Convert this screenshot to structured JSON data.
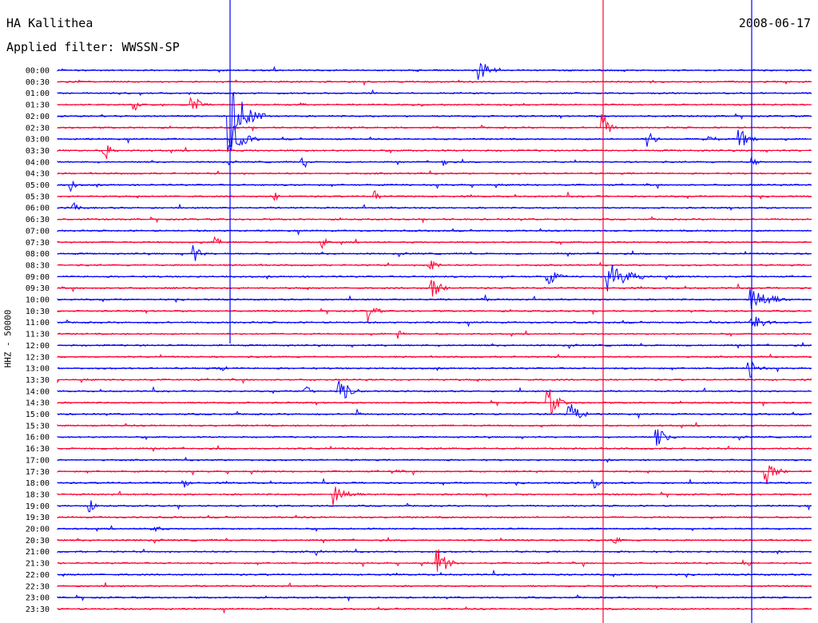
{
  "header": {
    "station": "HA Kallithea",
    "date": "2008-06-17",
    "filter": "Applied filter: WWSSN-SP"
  },
  "chart_data": {
    "type": "line",
    "title": "HA Kallithea",
    "ylabel": "HHZ - 50000",
    "colors": [
      "#0000ff",
      "#ff0033"
    ],
    "row_labels": [
      "00:00",
      "00:30",
      "01:00",
      "01:30",
      "02:00",
      "02:30",
      "03:00",
      "03:30",
      "04:00",
      "04:30",
      "05:00",
      "05:30",
      "06:00",
      "06:30",
      "07:00",
      "07:30",
      "08:00",
      "08:30",
      "09:00",
      "09:30",
      "10:00",
      "10:30",
      "11:00",
      "11:30",
      "12:00",
      "12:30",
      "13:00",
      "13:30",
      "14:00",
      "14:30",
      "15:00",
      "15:30",
      "16:00",
      "16:30",
      "17:00",
      "17:30",
      "18:00",
      "18:30",
      "19:00",
      "19:30",
      "20:00",
      "20:30",
      "21:00",
      "21:30",
      "22:00",
      "22:30",
      "23:00",
      "23:30"
    ]
  }
}
